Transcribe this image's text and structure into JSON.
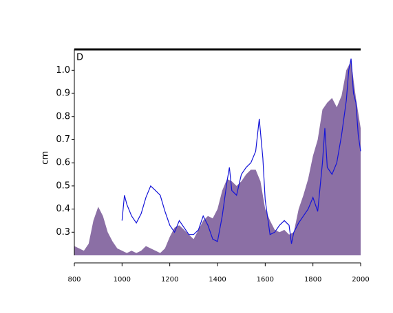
{
  "chart_data": {
    "type": "area-line",
    "annotation": "D",
    "ylabel": "cm",
    "xlim": [
      800,
      2000
    ],
    "xticks": [
      800,
      1000,
      1200,
      1400,
      1600,
      1800,
      2000
    ],
    "ylim": [
      0.2,
      1.09
    ],
    "yticks": [
      0.3,
      0.4,
      0.5,
      0.6,
      0.7,
      0.8,
      0.9,
      {
        "value": 1,
        "label": "1.0"
      }
    ],
    "series": [
      {
        "kind": "area",
        "color": "#8b6fa5",
        "x": [
          800,
          820,
          840,
          860,
          880,
          900,
          920,
          940,
          960,
          980,
          1000,
          1020,
          1040,
          1060,
          1080,
          1100,
          1120,
          1140,
          1160,
          1180,
          1200,
          1220,
          1240,
          1260,
          1280,
          1300,
          1320,
          1340,
          1360,
          1380,
          1400,
          1420,
          1440,
          1460,
          1480,
          1500,
          1520,
          1540,
          1560,
          1580,
          1600,
          1620,
          1640,
          1660,
          1680,
          1700,
          1720,
          1740,
          1760,
          1780,
          1800,
          1820,
          1840,
          1860,
          1880,
          1900,
          1920,
          1940,
          1960,
          1980,
          2000
        ],
        "values": [
          0.24,
          0.23,
          0.22,
          0.25,
          0.35,
          0.41,
          0.37,
          0.3,
          0.26,
          0.23,
          0.22,
          0.21,
          0.22,
          0.21,
          0.22,
          0.24,
          0.23,
          0.22,
          0.21,
          0.23,
          0.28,
          0.32,
          0.33,
          0.31,
          0.29,
          0.27,
          0.31,
          0.35,
          0.37,
          0.36,
          0.4,
          0.48,
          0.53,
          0.52,
          0.5,
          0.52,
          0.55,
          0.57,
          0.57,
          0.52,
          0.4,
          0.35,
          0.31,
          0.3,
          0.31,
          0.29,
          0.3,
          0.4,
          0.46,
          0.53,
          0.63,
          0.7,
          0.83,
          0.86,
          0.88,
          0.84,
          0.89,
          1.0,
          1.04,
          0.88,
          0.75
        ]
      },
      {
        "kind": "line",
        "color": "#1414d8",
        "x": [
          1000,
          1010,
          1020,
          1040,
          1060,
          1080,
          1100,
          1120,
          1140,
          1160,
          1180,
          1200,
          1220,
          1240,
          1260,
          1280,
          1300,
          1320,
          1340,
          1360,
          1380,
          1400,
          1420,
          1440,
          1450,
          1460,
          1480,
          1500,
          1520,
          1540,
          1560,
          1575,
          1590,
          1600,
          1620,
          1640,
          1660,
          1680,
          1700,
          1710,
          1720,
          1740,
          1760,
          1780,
          1800,
          1820,
          1840,
          1850,
          1860,
          1880,
          1900,
          1920,
          1940,
          1950,
          1960,
          1970,
          1980,
          1990,
          2000
        ],
        "values": [
          0.35,
          0.46,
          0.42,
          0.37,
          0.34,
          0.38,
          0.45,
          0.5,
          0.48,
          0.46,
          0.39,
          0.33,
          0.3,
          0.35,
          0.32,
          0.29,
          0.29,
          0.31,
          0.37,
          0.33,
          0.27,
          0.26,
          0.37,
          0.52,
          0.58,
          0.48,
          0.46,
          0.55,
          0.58,
          0.6,
          0.65,
          0.79,
          0.62,
          0.44,
          0.29,
          0.3,
          0.33,
          0.35,
          0.33,
          0.25,
          0.3,
          0.34,
          0.37,
          0.4,
          0.45,
          0.39,
          0.6,
          0.75,
          0.58,
          0.55,
          0.6,
          0.72,
          0.87,
          1.0,
          1.05,
          0.9,
          0.86,
          0.72,
          0.65
        ]
      }
    ]
  }
}
